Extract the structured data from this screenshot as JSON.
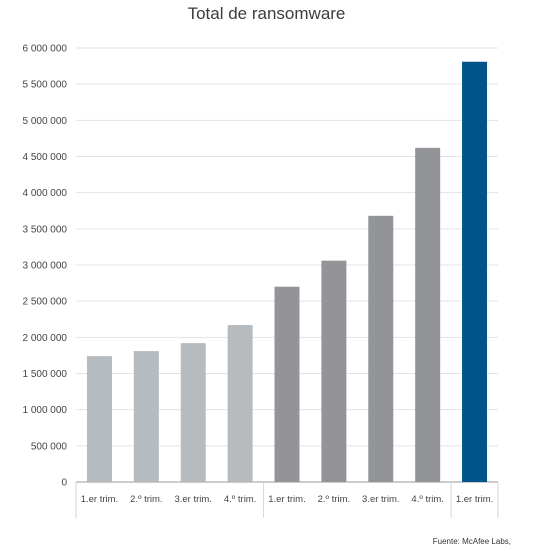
{
  "chart_data": {
    "type": "bar",
    "title": "Total de ransomware",
    "categories": [
      "1.er trim.",
      "2.º trim.",
      "3.er trim.",
      "4.º trim.",
      "1.er trim.",
      "2.º trim.",
      "3.er trim.",
      "4.º trim.",
      "1.er trim."
    ],
    "values": [
      1740000,
      1810000,
      1920000,
      2170000,
      2700000,
      3060000,
      3680000,
      4620000,
      5810000
    ],
    "bar_colors": [
      "#b6bbbf",
      "#b6bbbf",
      "#b6bbbf",
      "#b6bbbf",
      "#929497",
      "#929497",
      "#929497",
      "#929497",
      "#00548a"
    ],
    "y_ticks": [
      0,
      500000,
      1000000,
      1500000,
      2000000,
      2500000,
      3000000,
      3500000,
      4000000,
      4500000,
      5000000,
      5500000,
      6000000
    ],
    "y_tick_labels": [
      "0",
      "500 000",
      "1 000 000",
      "1 500 000",
      "2 000 000",
      "2 500 000",
      "3 000 000",
      "3 500 000",
      "4 000 000",
      "4 500 000",
      "5 000 000",
      "5 500 000",
      "6 000 000"
    ],
    "ylim": [
      0,
      6000000
    ],
    "xlabel": "",
    "ylabel": "",
    "grid": true,
    "group_separators_after": [
      4,
      8
    ],
    "source": "Fuente: McAfee Labs,"
  }
}
